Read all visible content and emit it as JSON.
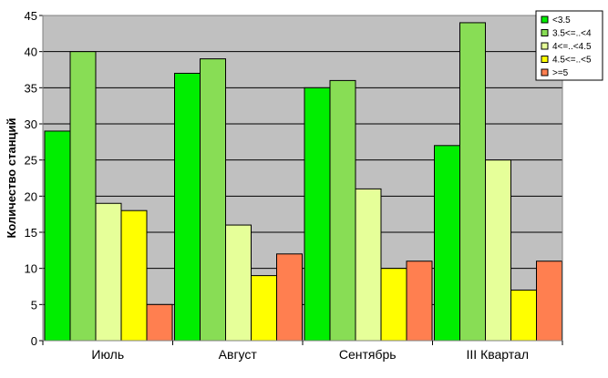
{
  "chart_data": {
    "type": "bar",
    "title": "",
    "xlabel": "",
    "ylabel": "Количество станций",
    "ylim": [
      0,
      45
    ],
    "yticks": [
      0,
      5,
      10,
      15,
      20,
      25,
      30,
      35,
      40,
      45
    ],
    "grid": true,
    "legend_position": "top-right",
    "categories": [
      "Июль",
      "Август",
      "Сентябрь",
      "III Квартал"
    ],
    "series": [
      {
        "name": "<3.5",
        "color": "#00ee00",
        "values": [
          29,
          37,
          35,
          27
        ]
      },
      {
        "name": "3.5<=..<4",
        "color": "#88dd55",
        "values": [
          40,
          39,
          36,
          44
        ]
      },
      {
        "name": "4<=..<4.5",
        "color": "#e6ff99",
        "values": [
          19,
          16,
          21,
          25
        ]
      },
      {
        "name": "4.5<=..<5",
        "color": "#ffff00",
        "values": [
          18,
          9,
          10,
          7
        ]
      },
      {
        "name": ">=5",
        "color": "#ff7f50",
        "values": [
          5,
          12,
          11,
          11
        ]
      }
    ],
    "plot_background": "#c0c0c0"
  }
}
